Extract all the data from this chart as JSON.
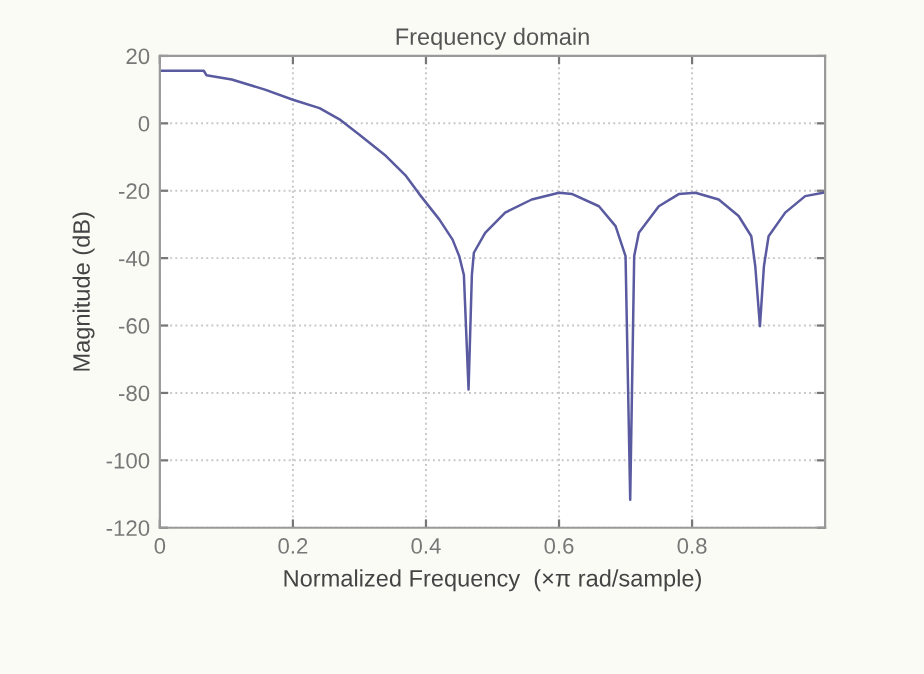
{
  "chart_data": {
    "type": "line",
    "title": "Frequency domain",
    "xlabel": "Normalized Frequency  (×π rad/sample)",
    "ylabel": "Magnitude (dB)",
    "x": [
      0,
      0.066,
      0.07,
      0.108,
      0.158,
      0.2,
      0.24,
      0.27,
      0.3,
      0.34,
      0.37,
      0.39,
      0.42,
      0.44,
      0.45,
      0.457,
      0.464,
      0.469,
      0.472,
      0.489,
      0.519,
      0.559,
      0.6,
      0.62,
      0.66,
      0.685,
      0.7,
      0.707,
      0.713,
      0.72,
      0.75,
      0.78,
      0.805,
      0.84,
      0.87,
      0.889,
      0.895,
      0.902,
      0.908,
      0.915,
      0.94,
      0.97,
      0.997
    ],
    "series": [
      {
        "color": "#5a5aa0",
        "values": [
          15.6,
          15.6,
          14.3,
          13,
          10,
          7,
          4.5,
          1.2,
          -3.4,
          -9.7,
          -15.6,
          -21,
          -28.5,
          -34.5,
          -39.4,
          -45,
          -79,
          -45,
          -38.4,
          -32.5,
          -26.5,
          -22.6,
          -20.6,
          -21,
          -24.6,
          -30.5,
          -39.4,
          -111.7,
          -39.4,
          -32.5,
          -24.6,
          -21,
          -20.6,
          -22.6,
          -27.5,
          -33.5,
          -42.4,
          -60.2,
          -42.4,
          -33.5,
          -26.5,
          -21.6,
          -20.6
        ]
      }
    ],
    "xlim": [
      0,
      1
    ],
    "xticks": [
      0,
      0.2,
      0.4,
      0.6,
      0.8
    ],
    "ylim": [
      -120,
      20
    ],
    "yticks": [
      -120,
      -100,
      -80,
      -60,
      -40,
      -20,
      0,
      20
    ],
    "grid": true,
    "legend": false,
    "marker": "none",
    "line_style": "solid"
  }
}
